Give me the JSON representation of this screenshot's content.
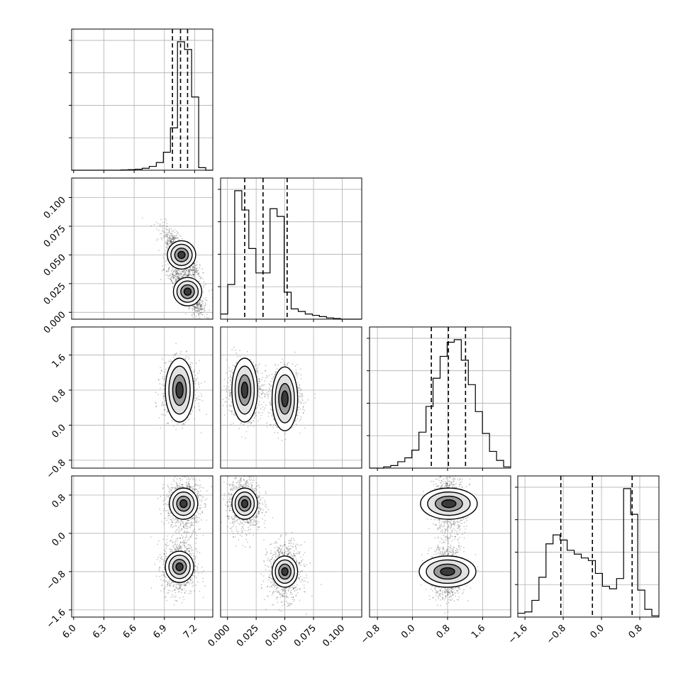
{
  "chart_data": {
    "type": "corner",
    "parameters": [
      {
        "name": "",
        "range": [
          5.98,
          7.38
        ],
        "ticks": [
          6.0,
          6.3,
          6.6,
          6.9,
          7.2
        ],
        "tick_labels": [
          "6.0",
          "6.3",
          "6.6",
          "6.9",
          "7.2"
        ],
        "quantiles": [
          6.98,
          7.06,
          7.13
        ]
      },
      {
        "name": "",
        "range": [
          -0.006,
          0.117
        ],
        "ticks": [
          0.0,
          0.025,
          0.05,
          0.075,
          0.1
        ],
        "tick_labels": [
          "0.000",
          "0.025",
          "0.050",
          "0.075",
          "0.100"
        ],
        "quantiles": [
          0.015,
          0.031,
          0.052
        ]
      },
      {
        "name": "",
        "range": [
          -0.98,
          2.24
        ],
        "ticks": [
          -0.8,
          0.0,
          0.8,
          1.6
        ],
        "tick_labels": [
          "−0.8",
          "0.0",
          "0.8",
          "1.6"
        ],
        "quantiles": [
          0.43,
          0.82,
          1.21
        ]
      },
      {
        "name": "",
        "range": [
          -1.75,
          1.2
        ],
        "ticks": [
          -1.6,
          -0.8,
          0.0,
          0.8
        ],
        "tick_labels": [
          "−1.6",
          "−0.8",
          "0.0",
          "0.8"
        ],
        "quantiles": [
          -0.85,
          -0.19,
          0.64
        ]
      }
    ],
    "histograms": [
      {
        "param": 0,
        "bin_edges": [
          5.98,
          6.05,
          6.12,
          6.19,
          6.26,
          6.33,
          6.4,
          6.47,
          6.54,
          6.61,
          6.68,
          6.75,
          6.82,
          6.89,
          6.96,
          7.03,
          7.1,
          7.17,
          7.24,
          7.31,
          7.38
        ],
        "counts": [
          0,
          0,
          0,
          0,
          0,
          0,
          0,
          0.2,
          0.4,
          0.8,
          1.5,
          3,
          6,
          14,
          33,
          100,
          94,
          57,
          2,
          0
        ]
      },
      {
        "param": 1,
        "bin_edges": [
          -0.006,
          0.0002,
          0.0063,
          0.0125,
          0.0186,
          0.0248,
          0.0309,
          0.0371,
          0.0432,
          0.0494,
          0.0555,
          0.0617,
          0.0678,
          0.074,
          0.0801,
          0.0863,
          0.0924,
          0.0986,
          0.1047,
          0.1109,
          0.117
        ],
        "counts": [
          4,
          27,
          100,
          85,
          55,
          36,
          36,
          86,
          80,
          21,
          8,
          6,
          4,
          3,
          2,
          1,
          0.5,
          0,
          0,
          0
        ]
      },
      {
        "param": 2,
        "bin_edges": [
          -0.98,
          -0.819,
          -0.658,
          -0.497,
          -0.336,
          -0.175,
          -0.014,
          0.147,
          0.308,
          0.469,
          0.63,
          0.791,
          0.952,
          1.113,
          1.274,
          1.435,
          1.596,
          1.757,
          1.918,
          2.079,
          2.24
        ],
        "counts": [
          0,
          0,
          1,
          2,
          5,
          8,
          14,
          28,
          48,
          70,
          87,
          98,
          100,
          84,
          65,
          44,
          27,
          13,
          6,
          1
        ]
      },
      {
        "param": 3,
        "bin_edges": [
          -1.75,
          -1.6025,
          -1.455,
          -1.3075,
          -1.16,
          -1.0125,
          -0.865,
          -0.7175,
          -0.57,
          -0.4225,
          -0.275,
          -0.1275,
          0.02,
          0.1675,
          0.315,
          0.4625,
          0.61,
          0.7575,
          0.905,
          1.0525,
          1.2
        ],
        "counts": [
          3,
          4,
          13,
          31,
          57,
          64,
          60,
          52,
          49,
          46,
          44,
          34,
          24,
          22,
          30,
          100,
          80,
          21,
          6,
          1
        ]
      }
    ],
    "scatter_panels": [
      {
        "x_param": 0,
        "y_param": 1,
        "description_modes": [
          [
            7.13,
            0.018
          ],
          [
            7.07,
            0.05
          ]
        ]
      },
      {
        "x_param": 0,
        "y_param": 2,
        "description_modes": [
          [
            7.05,
            0.8
          ]
        ]
      },
      {
        "x_param": 1,
        "y_param": 2,
        "description_modes": [
          [
            0.015,
            0.8
          ],
          [
            0.05,
            0.6
          ]
        ]
      },
      {
        "x_param": 0,
        "y_param": 3,
        "description_modes": [
          [
            7.09,
            0.62
          ],
          [
            7.05,
            -0.7
          ]
        ]
      },
      {
        "x_param": 1,
        "y_param": 3,
        "description_modes": [
          [
            0.015,
            0.62
          ],
          [
            0.05,
            -0.8
          ]
        ]
      },
      {
        "x_param": 2,
        "y_param": 3,
        "description_modes": [
          [
            0.83,
            0.62
          ],
          [
            0.8,
            -0.8
          ]
        ]
      }
    ],
    "grid": true,
    "colors": {
      "ink": "#000000",
      "grid": "#b0b0b0",
      "points": "#000000"
    }
  }
}
